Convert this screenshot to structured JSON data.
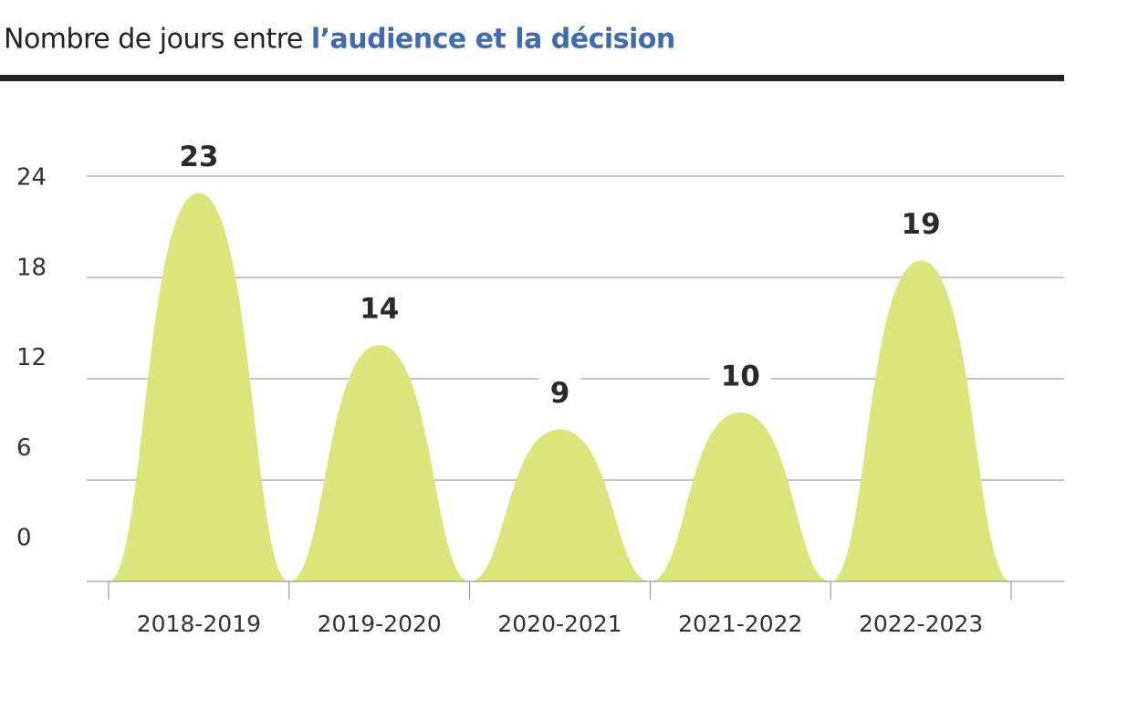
{
  "chart_data": {
    "type": "bell",
    "title": "Nombre de jours entre",
    "title_highlight": "l’audience et la décision",
    "title_highlight_color": "#3f6cb0",
    "categories": [
      "2018-2019",
      "2019-2020",
      "2020-2021",
      "2021-2022",
      "2022-2023"
    ],
    "values": [
      23,
      14,
      9,
      10,
      19
    ],
    "color": "#dce57a",
    "ylim": [
      0,
      24
    ],
    "yticks": [
      0,
      6,
      12,
      18,
      24
    ],
    "grid": true
  }
}
